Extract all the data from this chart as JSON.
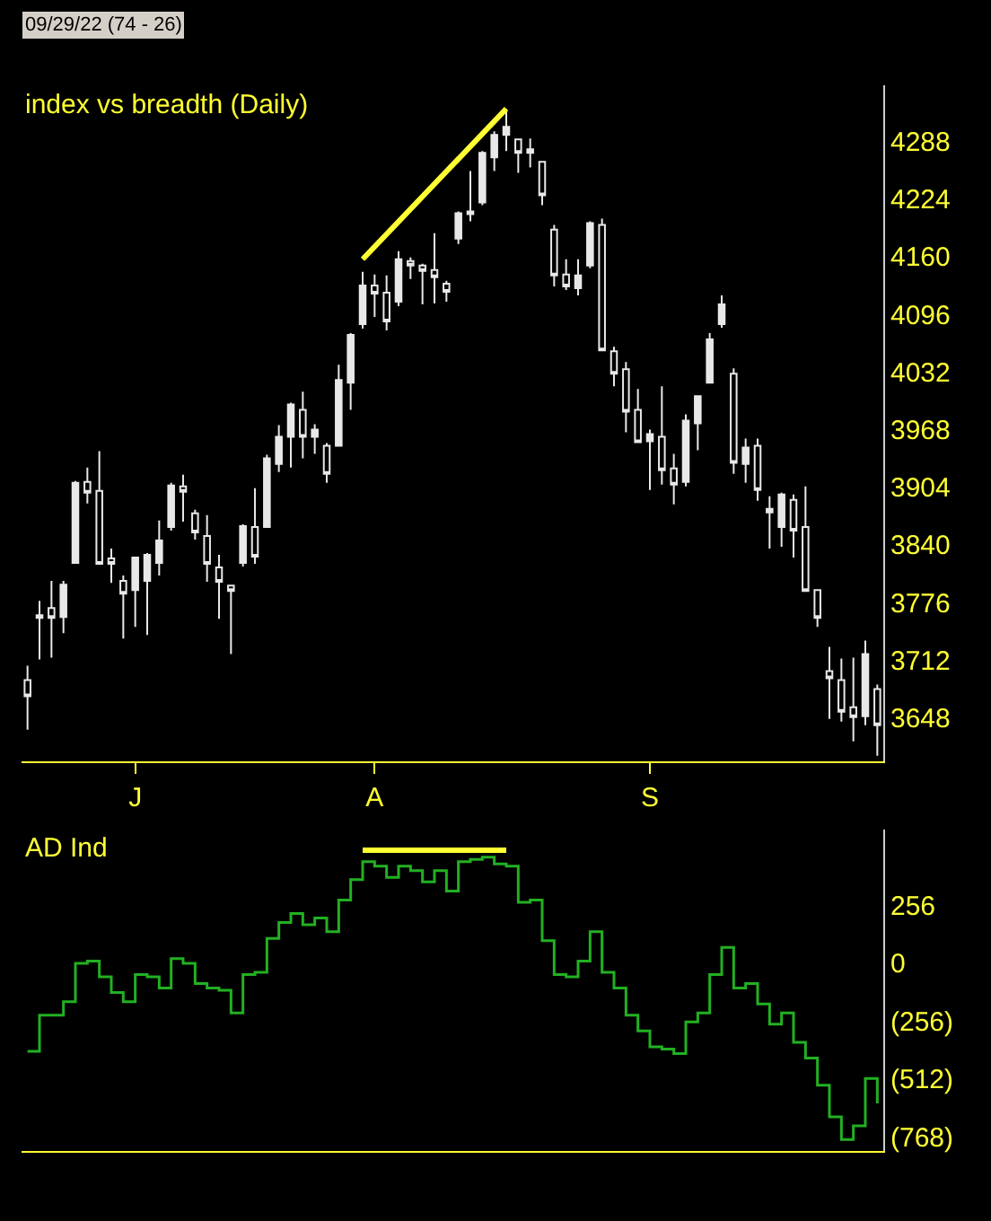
{
  "chart_data": [
    {
      "type": "candlestick",
      "title": "index vs breadth (Daily)",
      "annotations": [
        "09/29/22 (74 - 26)"
      ],
      "color": "#e8e8e8",
      "categories": [
        null,
        null,
        null,
        null,
        null,
        null,
        null,
        null,
        null,
        "J",
        null,
        null,
        null,
        null,
        null,
        null,
        null,
        null,
        null,
        null,
        null,
        null,
        null,
        null,
        null,
        null,
        null,
        null,
        null,
        "A",
        null,
        null,
        null,
        null,
        null,
        null,
        null,
        null,
        null,
        null,
        null,
        null,
        null,
        null,
        null,
        null,
        null,
        null,
        null,
        null,
        null,
        null,
        "S",
        null,
        null,
        null,
        null,
        null,
        null,
        null,
        null,
        null,
        null,
        null,
        null,
        null,
        null,
        null,
        null,
        null,
        null,
        null
      ],
      "ohlc": [
        [
          3690,
          3706,
          3635,
          3672
        ],
        [
          3762,
          3778,
          3713,
          3759
        ],
        [
          3770,
          3800,
          3715,
          3759
        ],
        [
          3760,
          3800,
          3742,
          3796
        ],
        [
          3820,
          3911,
          3819,
          3909
        ],
        [
          3910,
          3926,
          3886,
          3898
        ],
        [
          3900,
          3944,
          3819,
          3819
        ],
        [
          3825,
          3836,
          3798,
          3819
        ],
        [
          3800,
          3806,
          3736,
          3786
        ],
        [
          3790,
          3827,
          3749,
          3826
        ],
        [
          3800,
          3831,
          3740,
          3829
        ],
        [
          3820,
          3867,
          3806,
          3845
        ],
        [
          3860,
          3909,
          3856,
          3906
        ],
        [
          3905,
          3918,
          3866,
          3899
        ],
        [
          3875,
          3879,
          3846,
          3854
        ],
        [
          3850,
          3873,
          3799,
          3819
        ],
        [
          3815,
          3829,
          3758,
          3799
        ],
        [
          3795,
          3796,
          3719,
          3789
        ],
        [
          3820,
          3863,
          3816,
          3861
        ],
        [
          3860,
          3903,
          3819,
          3827
        ],
        [
          3860,
          3940,
          3859,
          3936
        ],
        [
          3930,
          3973,
          3921,
          3960
        ],
        [
          3960,
          3998,
          3926,
          3996
        ],
        [
          3990,
          4010,
          3936,
          3960
        ],
        [
          3960,
          3974,
          3941,
          3968
        ],
        [
          3950,
          3953,
          3909,
          3919
        ],
        [
          3950,
          4040,
          3950,
          4023
        ],
        [
          4020,
          4075,
          3990,
          4073
        ],
        [
          4085,
          4143,
          4080,
          4128
        ],
        [
          4128,
          4140,
          4093,
          4119
        ],
        [
          4120,
          4139,
          4078,
          4088
        ],
        [
          4110,
          4166,
          4105,
          4157
        ],
        [
          4155,
          4159,
          4135,
          4150
        ],
        [
          4150,
          4152,
          4107,
          4144
        ],
        [
          4145,
          4186,
          4108,
          4137
        ],
        [
          4130,
          4133,
          4110,
          4121
        ],
        [
          4180,
          4210,
          4174,
          4208
        ],
        [
          4210,
          4255,
          4199,
          4207
        ],
        [
          4220,
          4277,
          4217,
          4275
        ],
        [
          4270,
          4299,
          4255,
          4295
        ],
        [
          4295,
          4324,
          4277,
          4304
        ],
        [
          4290,
          4291,
          4253,
          4275
        ],
        [
          4275,
          4291,
          4259,
          4279
        ],
        [
          4265,
          4266,
          4217,
          4228
        ],
        [
          4190,
          4195,
          4127,
          4139
        ],
        [
          4140,
          4157,
          4123,
          4127
        ],
        [
          4125,
          4157,
          4117,
          4139
        ],
        [
          4150,
          4199,
          4147,
          4197
        ],
        [
          4195,
          4202,
          4056,
          4056
        ],
        [
          4055,
          4060,
          4016,
          4030
        ],
        [
          4035,
          4043,
          3965,
          3988
        ],
        [
          3990,
          4013,
          3953,
          3954
        ],
        [
          3955,
          3968,
          3901,
          3963
        ],
        [
          3960,
          4016,
          3907,
          3923
        ],
        [
          3925,
          3941,
          3885,
          3907
        ],
        [
          3910,
          3985,
          3905,
          3978
        ],
        [
          3975,
          4006,
          3945,
          4005
        ],
        [
          4020,
          4075,
          4020,
          4068
        ],
        [
          4085,
          4117,
          4081,
          4107
        ],
        [
          4030,
          4036,
          3919,
          3931
        ],
        [
          3930,
          3958,
          3909,
          3948
        ],
        [
          3950,
          3958,
          3889,
          3901
        ],
        [
          3880,
          3894,
          3836,
          3876
        ],
        [
          3860,
          3898,
          3838,
          3896
        ],
        [
          3890,
          3896,
          3826,
          3856
        ],
        [
          3860,
          3905,
          3789,
          3789
        ],
        [
          3790,
          3791,
          3749,
          3759
        ],
        [
          3700,
          3727,
          3647,
          3692
        ],
        [
          3690,
          3714,
          3644,
          3655
        ],
        [
          3660,
          3715,
          3622,
          3649
        ],
        [
          3650,
          3734,
          3640,
          3719
        ],
        [
          3680,
          3685,
          3606,
          3640
        ]
      ],
      "series": [
        {
          "type": "line",
          "values": [
            null,
            null,
            null,
            null,
            null,
            null,
            null,
            null,
            null,
            null,
            null,
            null,
            null,
            null,
            null,
            null,
            null,
            null,
            null,
            null,
            null,
            null,
            null,
            null,
            null,
            null,
            null,
            null,
            4157,
            null,
            null,
            null,
            null,
            null,
            null,
            null,
            null,
            null,
            null,
            null,
            4324,
            null,
            null,
            null,
            null,
            null,
            null,
            null,
            null,
            null,
            null,
            null,
            null,
            null,
            null,
            null,
            null,
            null,
            null,
            null,
            null,
            null,
            null,
            null,
            null,
            null,
            null,
            null,
            null,
            null,
            null,
            null
          ],
          "color": "#ffff33"
        }
      ],
      "ylim": [
        3600,
        4350
      ],
      "yticks": [
        3648,
        3712,
        3776,
        3840,
        3904,
        3968,
        4032,
        4096,
        4160,
        4224,
        4288
      ]
    },
    {
      "type": "step",
      "title": "AD Ind",
      "tick_labels": "y",
      "categories": [
        null,
        null,
        null,
        null,
        null,
        null,
        null,
        null,
        null,
        null,
        null,
        null,
        null,
        null,
        null,
        null,
        null,
        null,
        null,
        null,
        null,
        null,
        null,
        null,
        null,
        null,
        null,
        null,
        null,
        null,
        null,
        null,
        null,
        null,
        null,
        null,
        null,
        null,
        null,
        null,
        null,
        null,
        null,
        null,
        null,
        null,
        null,
        null,
        null,
        null,
        null,
        null,
        null,
        null,
        null,
        null,
        null,
        null,
        null,
        null,
        null,
        null,
        null,
        null,
        null,
        null,
        null,
        null,
        null,
        null,
        null,
        null
      ],
      "series": [
        {
          "type": "step",
          "color": "#22b022",
          "values": [
            -390,
            -230,
            -230,
            -170,
            0,
            10,
            -60,
            -130,
            -170,
            -50,
            -60,
            -110,
            20,
            0,
            -90,
            -110,
            -120,
            -220,
            -50,
            -40,
            110,
            180,
            220,
            170,
            200,
            140,
            280,
            370,
            450,
            430,
            380,
            430,
            410,
            360,
            410,
            320,
            450,
            460,
            470,
            440,
            430,
            270,
            280,
            100,
            -50,
            -60,
            10,
            140,
            -40,
            -110,
            -230,
            -300,
            -370,
            -380,
            -400,
            -260,
            -220,
            -50,
            70,
            -110,
            -90,
            -180,
            -270,
            -220,
            -350,
            -420,
            -540,
            -680,
            -780,
            -720,
            -510,
            -620
          ]
        },
        {
          "type": "line",
          "values": [
            null,
            null,
            null,
            null,
            null,
            null,
            null,
            null,
            null,
            null,
            null,
            null,
            null,
            null,
            null,
            null,
            null,
            null,
            null,
            null,
            null,
            null,
            null,
            null,
            null,
            null,
            null,
            null,
            500,
            null,
            null,
            null,
            null,
            null,
            null,
            null,
            null,
            null,
            null,
            null,
            500,
            null,
            null,
            null,
            null,
            null,
            null,
            null,
            null,
            null,
            null,
            null,
            null,
            null,
            null,
            null,
            null,
            null,
            null,
            null,
            null,
            null,
            null,
            null,
            null,
            null,
            null,
            null,
            null,
            null,
            null,
            null
          ],
          "color": "#ffff33"
        }
      ],
      "ylim": [
        -830,
        590
      ],
      "yticks": [
        {
          "value": 256,
          "label": "256"
        },
        {
          "value": 0,
          "label": "0"
        },
        {
          "value": -256,
          "label": "(256)"
        },
        {
          "value": -512,
          "label": "(512)"
        },
        {
          "value": -768,
          "label": "(768)"
        }
      ]
    }
  ]
}
